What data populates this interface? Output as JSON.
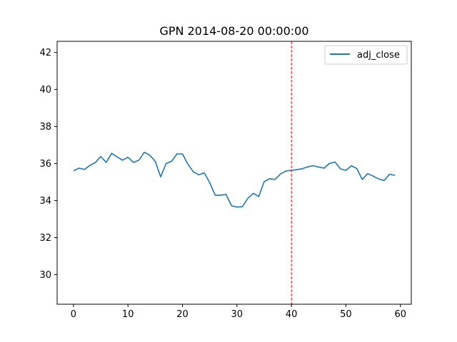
{
  "chart_data": {
    "type": "line",
    "title": "GPN 2014-08-20 00:00:00",
    "xlabel": "",
    "ylabel": "",
    "xlim": [
      -3,
      62
    ],
    "ylim": [
      28.4,
      42.6
    ],
    "xticks": [
      0,
      10,
      20,
      30,
      40,
      50,
      60
    ],
    "yticks": [
      30,
      32,
      34,
      36,
      38,
      40,
      42
    ],
    "grid": false,
    "legend_position": "top-right",
    "series": [
      {
        "name": "adj_close",
        "color": "#1f77b4",
        "x": [
          0,
          1,
          2,
          3,
          4,
          5,
          6,
          7,
          8,
          9,
          10,
          11,
          12,
          13,
          14,
          15,
          16,
          17,
          18,
          19,
          20,
          21,
          22,
          23,
          24,
          25,
          26,
          27,
          28,
          29,
          30,
          31,
          32,
          33,
          34,
          35,
          36,
          37,
          38,
          39,
          40,
          41,
          42,
          43,
          44,
          45,
          46,
          47,
          48,
          49,
          50,
          51,
          52,
          53,
          54,
          55,
          56,
          57,
          58,
          59
        ],
        "values": [
          35.6,
          35.75,
          35.68,
          35.9,
          36.05,
          36.38,
          36.06,
          36.55,
          36.36,
          36.18,
          36.34,
          36.06,
          36.18,
          36.61,
          36.45,
          36.12,
          35.28,
          36.0,
          36.12,
          36.52,
          36.52,
          35.96,
          35.55,
          35.39,
          35.5,
          34.97,
          34.29,
          34.29,
          34.33,
          33.72,
          33.65,
          33.67,
          34.12,
          34.39,
          34.22,
          35.02,
          35.18,
          35.14,
          35.44,
          35.6,
          35.63,
          35.67,
          35.72,
          35.82,
          35.88,
          35.81,
          35.75,
          36.01,
          36.08,
          35.71,
          35.63,
          35.88,
          35.73,
          35.14,
          35.46,
          35.32,
          35.17,
          35.08,
          35.42,
          35.36
        ]
      }
    ],
    "annotations": [
      {
        "type": "vline",
        "x": 40,
        "color": "#ff0000",
        "style": "dashed"
      }
    ]
  }
}
